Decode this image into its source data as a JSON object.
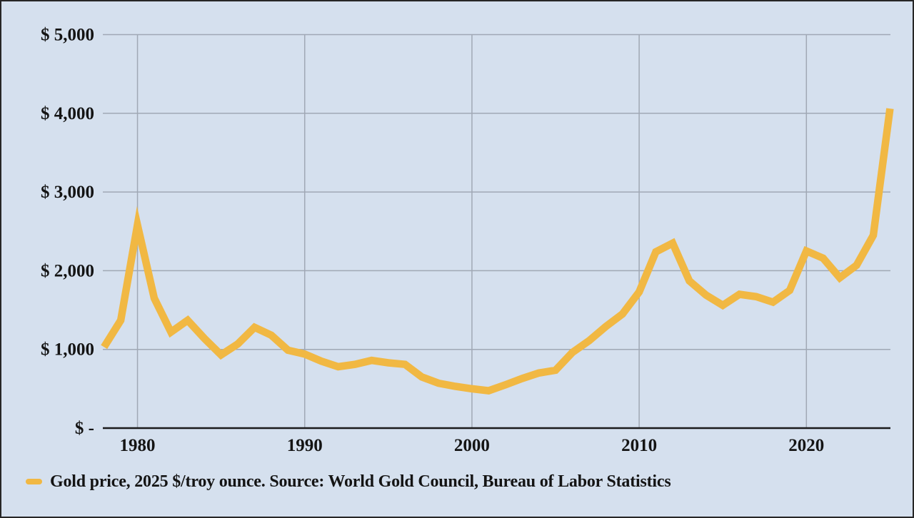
{
  "legend": {
    "marker": "gold-dash",
    "label": "Gold price, 2025 $/troy ounce. Source: World Gold Council, Bureau of Labor Statistics"
  },
  "colors": {
    "background": "#d5e0ee",
    "line": "#f1b843",
    "gridline": "#a0a8b5",
    "axis": "#1b1b1b",
    "text": "#141414",
    "frame_border": "#262626"
  },
  "chart_data": {
    "type": "line",
    "title": "",
    "xlabel": "",
    "ylabel": "",
    "grid": true,
    "legend_position": "bottom-left",
    "xlim": [
      1978,
      2025
    ],
    "ylim": [
      0,
      5000
    ],
    "x_ticks": [
      {
        "value": 1980,
        "label": "1980"
      },
      {
        "value": 1990,
        "label": "1990"
      },
      {
        "value": 2000,
        "label": "2000"
      },
      {
        "value": 2010,
        "label": "2010"
      },
      {
        "value": 2020,
        "label": "2020"
      }
    ],
    "y_ticks": [
      {
        "value": 0,
        "label": "$ -"
      },
      {
        "value": 1000,
        "label": "$ 1,000"
      },
      {
        "value": 2000,
        "label": "$ 2,000"
      },
      {
        "value": 3000,
        "label": "$ 3,000"
      },
      {
        "value": 4000,
        "label": "$ 4,000"
      },
      {
        "value": 5000,
        "label": "$ 5,000"
      }
    ],
    "series": [
      {
        "name": "Gold price, 2025 $/troy ounce",
        "x": [
          1978,
          1979,
          1980,
          1981,
          1982,
          1983,
          1984,
          1985,
          1986,
          1987,
          1988,
          1989,
          1990,
          1991,
          1992,
          1993,
          1994,
          1995,
          1996,
          1997,
          1998,
          1999,
          2000,
          2001,
          2002,
          2003,
          2004,
          2005,
          2006,
          2007,
          2008,
          2009,
          2010,
          2011,
          2012,
          2013,
          2014,
          2015,
          2016,
          2017,
          2018,
          2019,
          2020,
          2021,
          2022,
          2023,
          2024,
          2025
        ],
        "values": [
          1030,
          1370,
          2580,
          1650,
          1220,
          1370,
          1140,
          930,
          1070,
          1280,
          1180,
          990,
          940,
          850,
          780,
          810,
          860,
          830,
          810,
          650,
          570,
          530,
          500,
          475,
          550,
          630,
          700,
          735,
          960,
          1110,
          1290,
          1450,
          1730,
          2240,
          2350,
          1870,
          1690,
          1560,
          1700,
          1670,
          1600,
          1750,
          2250,
          2160,
          1910,
          2070,
          2450,
          4060
        ]
      }
    ]
  }
}
